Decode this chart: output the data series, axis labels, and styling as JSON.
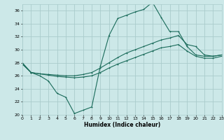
{
  "title": "",
  "xlabel": "Humidex (Indice chaleur)",
  "ylabel": "",
  "bg_color": "#cce8e8",
  "grid_color": "#aacccc",
  "line_color": "#1a6b5a",
  "xmin": 0,
  "xmax": 23,
  "ymin": 20,
  "ymax": 37,
  "yticks": [
    20,
    22,
    24,
    26,
    28,
    30,
    32,
    34,
    36
  ],
  "xticks": [
    0,
    1,
    2,
    3,
    4,
    5,
    6,
    7,
    8,
    9,
    10,
    11,
    12,
    13,
    14,
    15,
    16,
    17,
    18,
    19,
    20,
    21,
    22,
    23
  ],
  "line1_x": [
    0,
    1,
    2,
    3,
    4,
    5,
    6,
    7,
    8,
    9,
    10,
    11,
    12,
    13,
    14,
    15,
    16,
    17,
    18,
    19,
    20,
    21,
    22,
    23
  ],
  "line1_y": [
    28.0,
    26.5,
    26.0,
    25.2,
    23.3,
    22.7,
    20.2,
    20.7,
    21.2,
    27.5,
    32.2,
    34.8,
    35.3,
    35.8,
    36.2,
    37.3,
    35.0,
    32.8,
    32.8,
    30.5,
    29.2,
    29.0,
    29.0,
    29.2
  ],
  "line2_x": [
    0,
    1,
    2,
    3,
    4,
    5,
    6,
    7,
    8,
    9,
    10,
    11,
    12,
    13,
    14,
    15,
    16,
    17,
    18,
    19,
    20,
    21,
    22,
    23
  ],
  "line2_y": [
    27.8,
    26.5,
    26.3,
    26.2,
    26.1,
    26.0,
    26.0,
    26.2,
    26.5,
    27.2,
    28.0,
    28.8,
    29.5,
    30.0,
    30.5,
    31.0,
    31.5,
    31.8,
    32.2,
    30.8,
    30.5,
    29.2,
    29.0,
    29.2
  ],
  "line3_x": [
    0,
    1,
    2,
    3,
    4,
    5,
    6,
    7,
    8,
    9,
    10,
    11,
    12,
    13,
    14,
    15,
    16,
    17,
    18,
    19,
    20,
    21,
    22,
    23
  ],
  "line3_y": [
    27.8,
    26.5,
    26.3,
    26.1,
    25.9,
    25.8,
    25.7,
    25.8,
    26.0,
    26.5,
    27.2,
    27.8,
    28.3,
    28.8,
    29.3,
    29.8,
    30.3,
    30.5,
    30.8,
    29.8,
    29.0,
    28.7,
    28.7,
    29.0
  ]
}
